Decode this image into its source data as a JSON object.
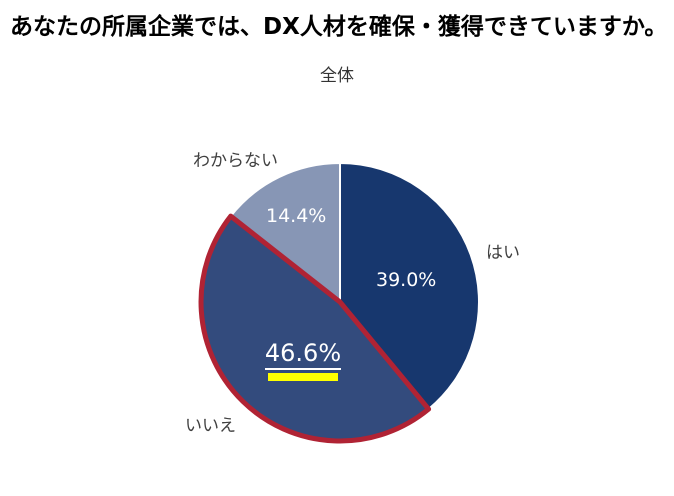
{
  "page": {
    "title": "あなたの所属企業では、DX人材を確保・獲得できていますか。",
    "subtitle": "全体"
  },
  "labels": {
    "yes_category": "はい",
    "yes_value": "39.0%",
    "no_category": "いいえ",
    "no_value": "46.6%",
    "unknown_category": "わからない",
    "unknown_value": "14.4%"
  },
  "colors": {
    "background": "#FFFFFF",
    "title_text": "#000000",
    "subtitle_text": "#333333",
    "category_label_text": "#404040",
    "value_label_text": "#FFFFFF",
    "highlight_bar": "#FFFF00",
    "emphasis_outline": "#B02334"
  },
  "chart_data": {
    "type": "pie",
    "title": "あなたの所属企業では、DX人材を確保・獲得できていますか。",
    "subtitle": "全体",
    "categories": [
      "はい",
      "いいえ",
      "わからない"
    ],
    "values": [
      39.0,
      46.6,
      14.4
    ],
    "value_labels": [
      "39.0%",
      "46.6%",
      "14.4%"
    ],
    "unit": "%",
    "start_angle_deg": 0,
    "direction": "clockwise",
    "legend": "none",
    "slice_names": [
      "yes",
      "no",
      "unknown"
    ],
    "colors": [
      "#17376E",
      "#334B7D",
      "#8796B5"
    ],
    "strokes": [
      "#FFFFFF",
      "#B02334",
      "#FFFFFF"
    ],
    "stroke_widths": [
      2,
      5,
      2
    ],
    "draw_order": [
      0,
      2,
      1
    ],
    "annotations": {
      "emphasized_slice": "いいえ",
      "emphasis_style": "red outline around いいえ slice; its 46.6% value label is underlined and marked with a yellow highlight bar"
    }
  }
}
